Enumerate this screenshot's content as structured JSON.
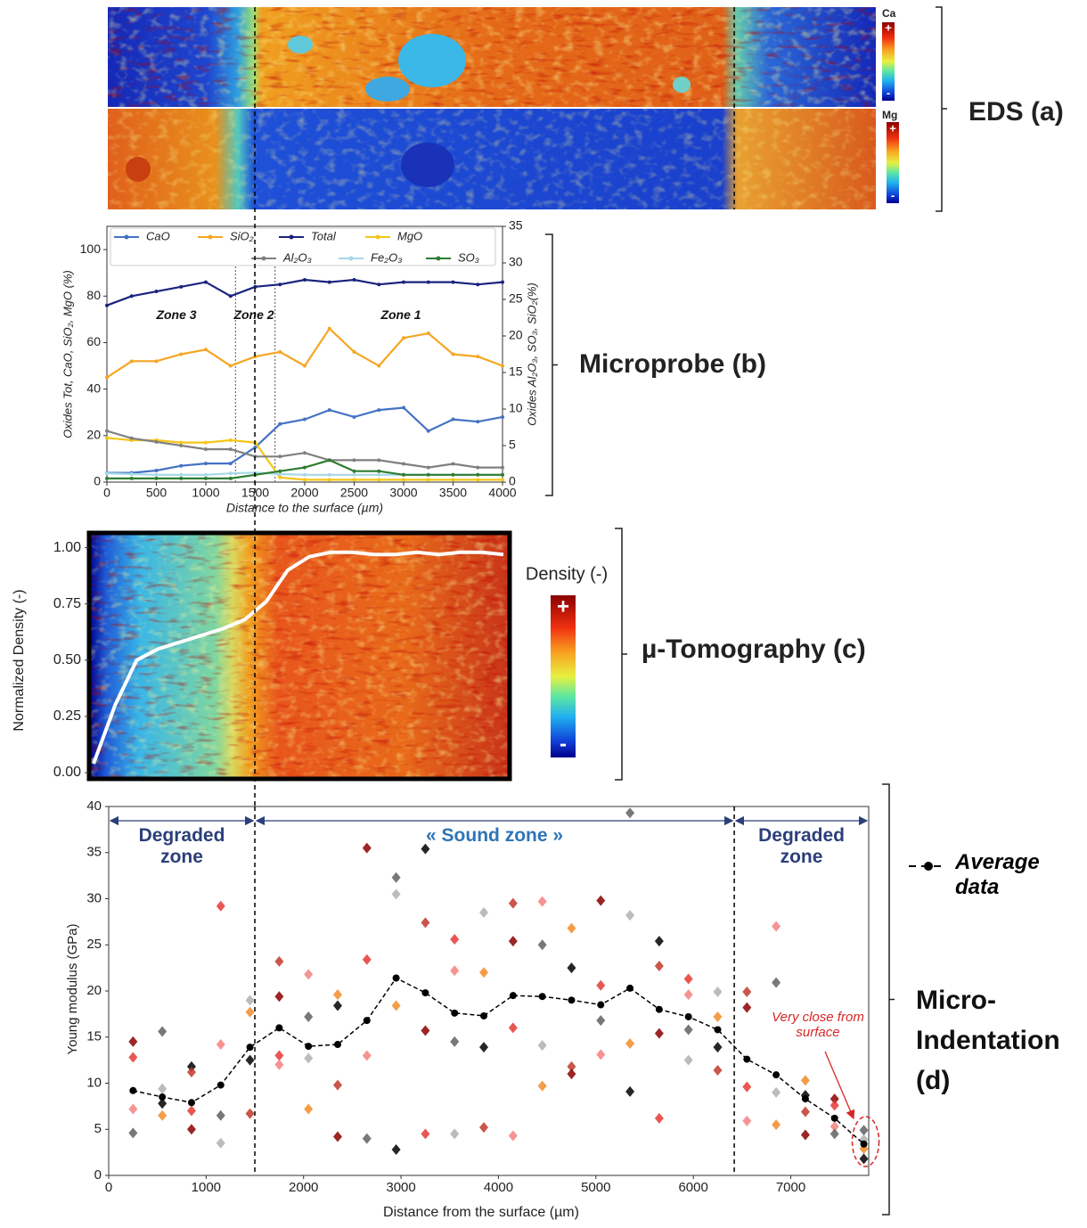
{
  "eds": {
    "maps": [
      {
        "element": "Ca",
        "plus": "+",
        "minus": "-"
      },
      {
        "element": "Mg",
        "plus": "+",
        "minus": "-"
      }
    ],
    "panel_label": "EDS (a)"
  },
  "chart_data": [
    {
      "type": "line",
      "panel_label": "Microprobe (b)",
      "x": [
        0,
        250,
        500,
        750,
        1000,
        1250,
        1500,
        1750,
        2000,
        2250,
        2500,
        2750,
        3000,
        3250,
        3500,
        3750,
        4000
      ],
      "xlim": [
        0,
        4000
      ],
      "xticks": [
        0,
        500,
        1000,
        1500,
        2000,
        2500,
        3000,
        3500,
        4000
      ],
      "ylim": [
        0,
        110
      ],
      "yticks": [
        0,
        20,
        40,
        60,
        80,
        100
      ],
      "y2lim": [
        0,
        35
      ],
      "y2ticks": [
        0,
        5,
        10,
        15,
        20,
        25,
        30,
        35
      ],
      "xlabel": "Distance to the surface (µm)",
      "ylabel": "Oxides Tot, CaO, SiO₂, MgO (%)",
      "y2label": "Oxides Al₂O₃, SO₃, SiO₂(%)",
      "series": [
        {
          "name": "CaO",
          "color": "#4472c4",
          "values": [
            4,
            4,
            5,
            7,
            8,
            8,
            15,
            25,
            27,
            31,
            28,
            31,
            32,
            22,
            27,
            26,
            28
          ]
        },
        {
          "name": "SiO₂",
          "color": "#f5a623",
          "values": [
            45,
            52,
            52,
            55,
            57,
            50,
            54,
            56,
            50,
            66,
            56,
            50,
            62,
            64,
            55,
            54,
            50
          ]
        },
        {
          "name": "Total",
          "color": "#1a237e",
          "values": [
            76,
            80,
            82,
            84,
            86,
            80,
            84,
            85,
            87,
            86,
            87,
            85,
            86,
            86,
            86,
            85,
            86
          ]
        },
        {
          "name": "MgO",
          "color": "#f5c518",
          "values": [
            19,
            18,
            18,
            17,
            17,
            18,
            17,
            2,
            1,
            1,
            1,
            1,
            1,
            1,
            1,
            1,
            1
          ]
        },
        {
          "name": "Al₂O₃",
          "color": "#808080",
          "axis": "y2",
          "values": [
            7,
            6,
            5.5,
            5,
            4.5,
            4.5,
            3.5,
            3.5,
            4,
            3,
            3,
            3,
            2.5,
            2,
            2.5,
            2,
            2
          ]
        },
        {
          "name": "Fe₂O₃",
          "color": "#a6d8e8",
          "axis": "y2",
          "values": [
            1.2,
            1.1,
            1,
            1,
            1,
            1.2,
            1.3,
            1.1,
            1,
            1,
            1,
            1,
            1,
            1,
            1,
            1,
            1
          ]
        },
        {
          "name": "SO₃",
          "color": "#2e7d32",
          "axis": "y2",
          "values": [
            0.5,
            0.5,
            0.5,
            0.5,
            0.5,
            0.5,
            1,
            1.5,
            2,
            3,
            1.5,
            1.5,
            1,
            1,
            1,
            1,
            1
          ]
        }
      ],
      "zone_boundaries": [
        1300,
        1700
      ],
      "zone_labels": [
        "Zone 3",
        "Zone 2",
        "Zone 1"
      ]
    },
    {
      "type": "density_profile",
      "panel_label": "µ-Tomography (c)",
      "values": [
        0.04,
        0.3,
        0.5,
        0.55,
        0.58,
        0.61,
        0.64,
        0.68,
        0.76,
        0.9,
        0.96,
        0.98,
        0.98,
        0.97,
        0.97,
        0.98,
        0.97,
        0.98,
        0.98,
        0.97
      ],
      "color": "#ffffff",
      "ylim": [
        0,
        1.05
      ],
      "yticks": [
        {
          "value": 0,
          "label": "0.00"
        },
        {
          "value": 0.25,
          "label": "0.25"
        },
        {
          "value": 0.5,
          "label": "0.50"
        },
        {
          "value": 0.75,
          "label": "0.75"
        },
        {
          "value": 1,
          "label": "1.00"
        }
      ],
      "ylabel": "Normalized Density (-)",
      "colorbar": {
        "label": "Density (-)",
        "high": "+",
        "low": "-"
      }
    },
    {
      "type": "scatter",
      "panel_label": "Micro-Indentation (d)",
      "x": [
        250,
        550,
        850,
        1150,
        1450,
        1750,
        2050,
        2350,
        2650,
        2950,
        3250,
        3550,
        3850,
        4150,
        4450,
        4750,
        5050,
        5350,
        5650,
        5950,
        6250,
        6550,
        6850,
        7150,
        7450,
        7750
      ],
      "xlim": [
        0,
        7800
      ],
      "xticks": [
        0,
        1000,
        2000,
        3000,
        4000,
        5000,
        6000,
        7000
      ],
      "ylim": [
        0,
        40
      ],
      "yticks": [
        0,
        5,
        10,
        15,
        20,
        25,
        30,
        35,
        40
      ],
      "xlabel": "Distance from the surface (µm)",
      "ylabel": "Young modulus (GPa)",
      "point_values": [
        [
          14.5,
          12.8,
          7.2,
          4.6
        ],
        [
          15.6,
          9.4,
          6.5,
          7.8
        ],
        [
          11.8,
          11.2,
          5.0,
          7.0
        ],
        [
          29.2,
          14.2,
          6.5,
          3.5
        ],
        [
          19.0,
          17.7,
          12.5,
          6.7
        ],
        [
          23.2,
          19.4,
          13.0,
          12.0
        ],
        [
          21.8,
          17.2,
          12.7,
          7.2
        ],
        [
          19.6,
          18.4,
          9.8,
          4.2
        ],
        [
          35.5,
          23.4,
          13.0,
          4.0
        ],
        [
          32.3,
          30.5,
          18.4,
          2.8
        ],
        [
          35.4,
          27.4,
          15.7,
          4.5
        ],
        [
          25.6,
          22.2,
          14.5,
          4.5
        ],
        [
          28.5,
          22.0,
          13.9,
          5.2
        ],
        [
          29.5,
          25.4,
          16.0,
          4.3
        ],
        [
          29.7,
          25.0,
          14.1,
          9.7
        ],
        [
          26.8,
          22.5,
          11.8,
          11.0
        ],
        [
          29.8,
          20.6,
          13.1,
          16.8
        ],
        [
          39.3,
          28.2,
          14.3,
          9.1
        ],
        [
          25.4,
          22.7,
          15.4,
          6.2
        ],
        [
          21.3,
          19.6,
          15.8,
          12.5
        ],
        [
          19.9,
          17.2,
          13.9,
          11.4
        ],
        [
          19.9,
          18.2,
          9.6,
          5.9
        ],
        [
          27.0,
          20.9,
          9.0,
          5.5
        ],
        [
          10.3,
          8.7,
          6.9,
          4.4
        ],
        [
          8.3,
          7.6,
          5.3,
          4.5
        ],
        [
          4.9,
          3.9,
          2.9,
          1.8
        ]
      ],
      "point_palette": [
        "#8b0000",
        "#e53935",
        "#f48080",
        "#606060",
        "#b0b0b0",
        "#f28c28",
        "#000000",
        "#c0392b"
      ],
      "series": [
        {
          "name": "Average data",
          "color": "#000000",
          "values": [
            9.2,
            8.5,
            7.9,
            9.8,
            13.9,
            16.0,
            14.0,
            14.2,
            16.8,
            21.4,
            19.8,
            17.6,
            17.3,
            19.5,
            19.4,
            19.0,
            18.5,
            20.3,
            18.0,
            17.2,
            15.8,
            12.6,
            10.9,
            8.3,
            6.2,
            3.4
          ]
        }
      ],
      "zone_boundaries": [
        1500,
        6420
      ],
      "zone_labels": [
        "Degraded zone",
        "« Sound zone »",
        "Degraded zone"
      ],
      "annotation": "Very close from surface"
    }
  ]
}
